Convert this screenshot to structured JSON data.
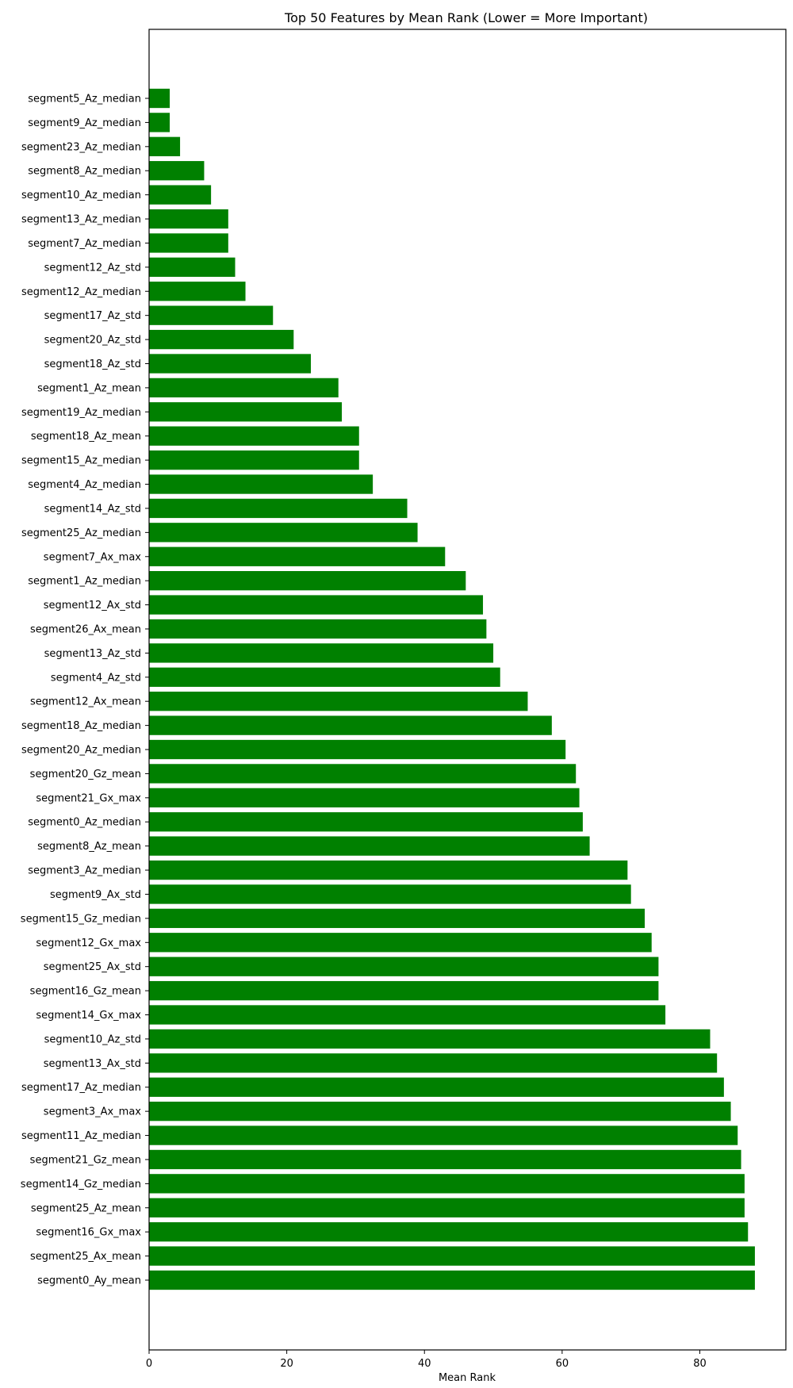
{
  "chart_data": {
    "type": "bar",
    "orientation": "horizontal",
    "title": "Top 50 Features by Mean Rank (Lower = More Important)",
    "xlabel": "Mean Rank",
    "ylabel": "",
    "xlim": [
      0,
      92.5
    ],
    "xticks": [
      0,
      20,
      40,
      60,
      80
    ],
    "grid": false,
    "bar_color": "#008000",
    "categories": [
      "segment5_Az_median",
      "segment9_Az_median",
      "segment23_Az_median",
      "segment8_Az_median",
      "segment10_Az_median",
      "segment13_Az_median",
      "segment7_Az_median",
      "segment12_Az_std",
      "segment12_Az_median",
      "segment17_Az_std",
      "segment20_Az_std",
      "segment18_Az_std",
      "segment1_Az_mean",
      "segment19_Az_median",
      "segment18_Az_mean",
      "segment15_Az_median",
      "segment4_Az_median",
      "segment14_Az_std",
      "segment25_Az_median",
      "segment7_Ax_max",
      "segment1_Az_median",
      "segment12_Ax_std",
      "segment26_Ax_mean",
      "segment13_Az_std",
      "segment4_Az_std",
      "segment12_Ax_mean",
      "segment18_Az_median",
      "segment20_Az_median",
      "segment20_Gz_mean",
      "segment21_Gx_max",
      "segment0_Az_median",
      "segment8_Az_mean",
      "segment3_Az_median",
      "segment9_Ax_std",
      "segment15_Gz_median",
      "segment12_Gx_max",
      "segment25_Ax_std",
      "segment16_Gz_mean",
      "segment14_Gx_max",
      "segment10_Az_std",
      "segment13_Ax_std",
      "segment17_Az_median",
      "segment3_Ax_max",
      "segment11_Az_median",
      "segment21_Gz_mean",
      "segment14_Gz_median",
      "segment25_Az_mean",
      "segment16_Gx_max",
      "segment25_Ax_mean",
      "segment0_Ay_mean"
    ],
    "values": [
      3.0,
      3.0,
      4.5,
      8.0,
      9.0,
      11.5,
      11.5,
      12.5,
      14.0,
      18.0,
      21.0,
      23.5,
      27.5,
      28.0,
      30.5,
      30.5,
      32.5,
      37.5,
      39.0,
      43.0,
      46.0,
      48.5,
      49.0,
      50.0,
      51.0,
      55.0,
      58.5,
      60.5,
      62.0,
      62.5,
      63.0,
      64.0,
      69.5,
      70.0,
      72.0,
      73.0,
      74.0,
      74.0,
      75.0,
      81.5,
      82.5,
      83.5,
      84.5,
      85.5,
      86.0,
      86.5,
      86.5,
      87.0,
      88.0,
      88.0
    ]
  }
}
